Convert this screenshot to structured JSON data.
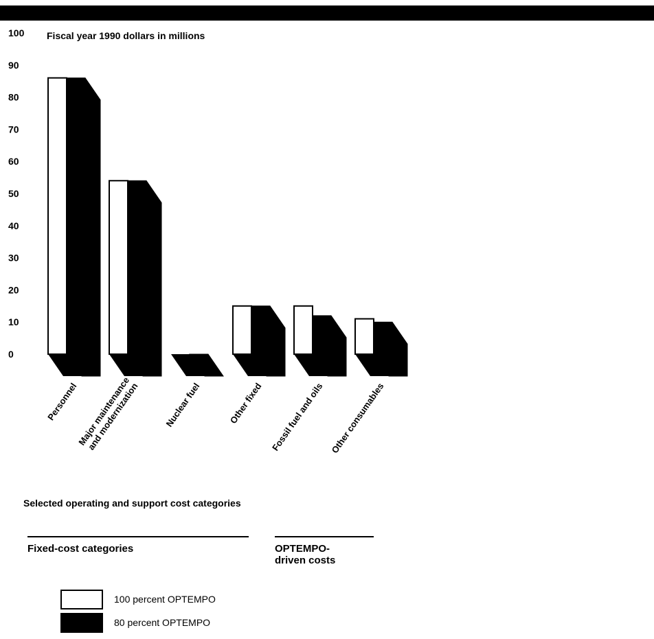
{
  "chart_data": {
    "type": "bar",
    "style": "3d-grouped",
    "ylabel": "Fiscal year 1990 dollars in millions",
    "xlabel": "Selected operating and support cost categories",
    "ylim": [
      0,
      100
    ],
    "yticks": [
      0,
      10,
      20,
      30,
      40,
      50,
      60,
      70,
      80,
      90,
      100
    ],
    "categories": [
      [
        "Personnel"
      ],
      [
        "Major maintenance",
        "and modernization"
      ],
      [
        "Nuclear fuel"
      ],
      [
        "Other fixed"
      ],
      [
        "Fossil fuel and oils"
      ],
      [
        "Other consumables"
      ]
    ],
    "series": [
      {
        "name": "100 percent OPTEMPO",
        "color": "#ffffff",
        "values": [
          86,
          54,
          0,
          15,
          15,
          11
        ]
      },
      {
        "name": "80 percent OPTEMPO",
        "color": "#000000",
        "values": [
          86,
          54,
          0,
          15,
          12,
          10
        ]
      }
    ],
    "groups": [
      {
        "label": "Fixed-cost categories",
        "categories": 4
      },
      {
        "label": "OPTEMPO-\ndriven costs",
        "categories": 2
      }
    ],
    "grid": false,
    "legend_position": "bottom-left"
  },
  "legend": [
    {
      "label": "100 percent OPTEMPO",
      "color": "#ffffff"
    },
    {
      "label": "80 percent OPTEMPO",
      "color": "#000000"
    }
  ],
  "groups": {
    "fixed": "Fixed-cost categories",
    "optempo_line1": "OPTEMPO-",
    "optempo_line2": "driven costs"
  }
}
